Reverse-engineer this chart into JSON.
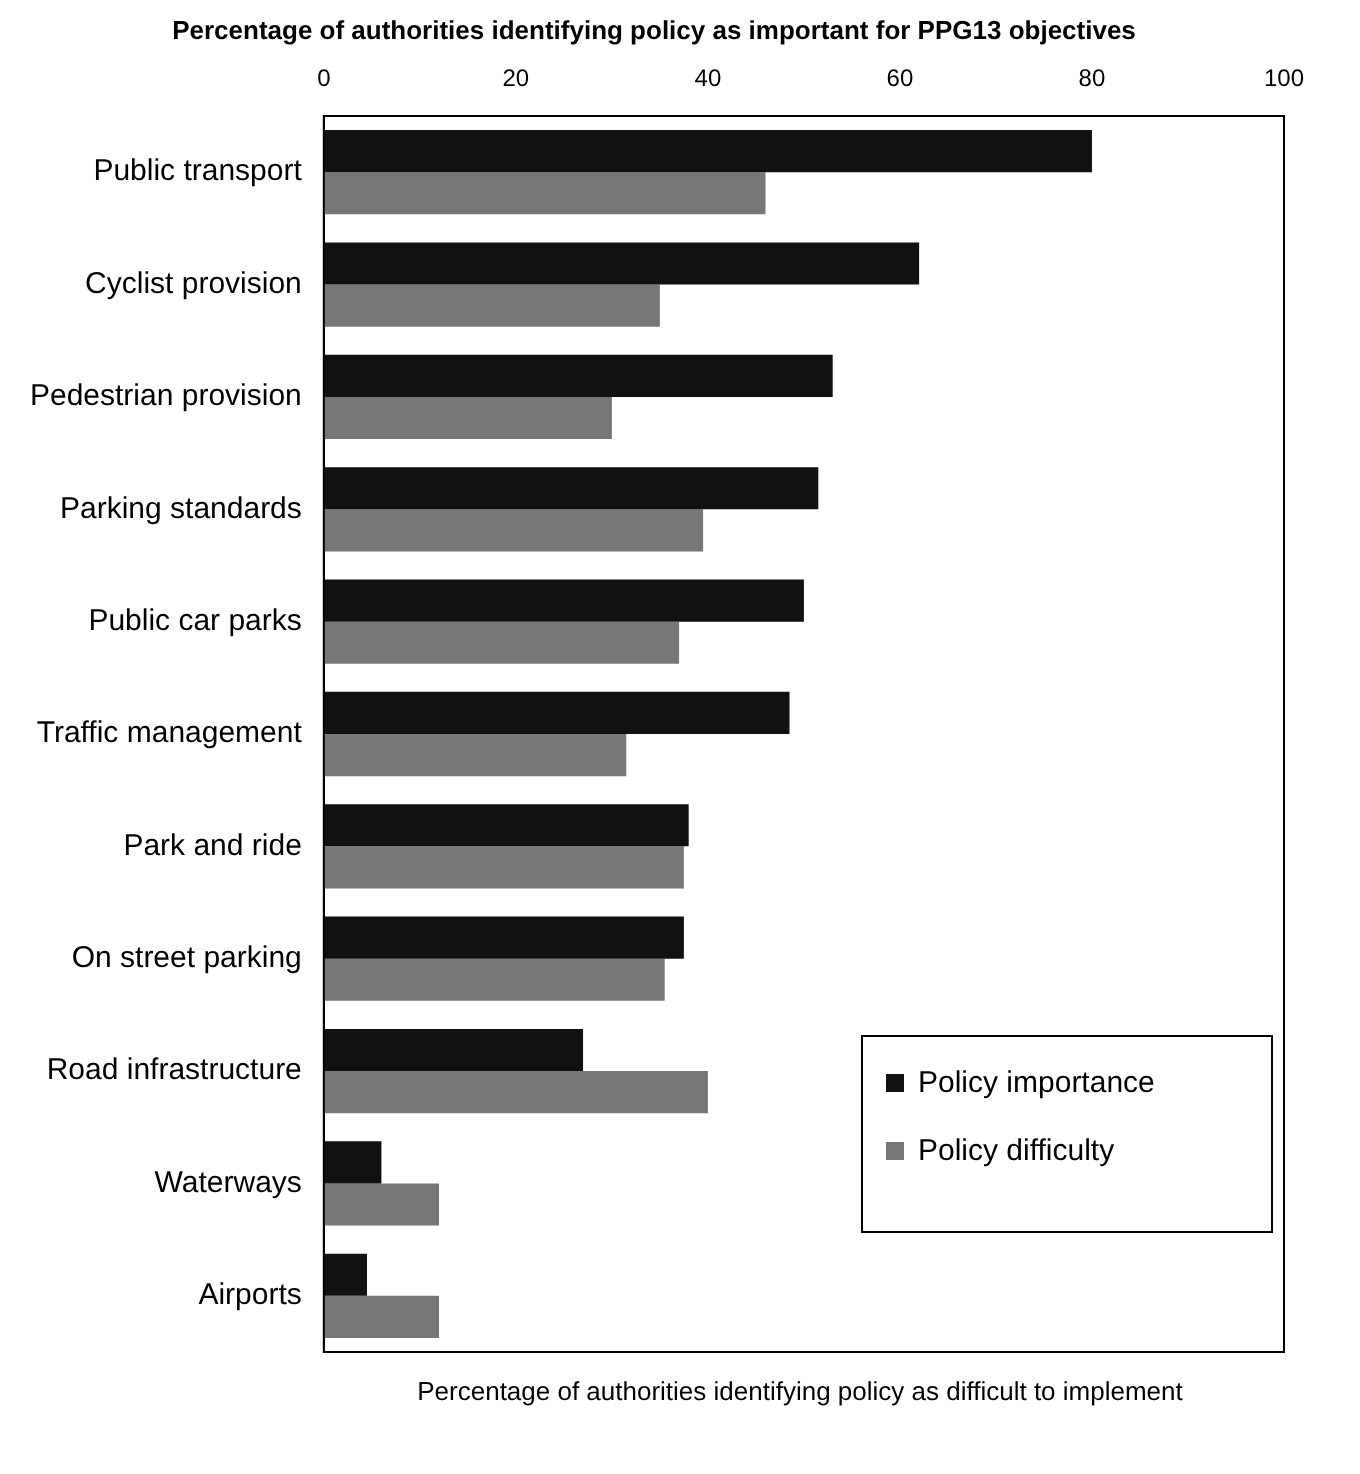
{
  "chart_data": {
    "type": "bar",
    "orientation": "horizontal",
    "title": "Percentage of authorities identifying policy as important for PPG13 objectives",
    "xlabel": "Percentage of authorities identifying policy as difficult to implement",
    "categories": [
      "Public transport",
      "Cyclist provision",
      "Pedestrian provision",
      "Parking standards",
      "Public car parks",
      "Traffic management",
      "Park and ride",
      "On street parking",
      "Road infrastructure",
      "Waterways",
      "Airports"
    ],
    "series": [
      {
        "name": "Policy importance",
        "color": "#111111",
        "values": [
          80,
          62,
          53,
          51.5,
          50,
          48.5,
          38,
          37.5,
          27,
          6,
          4.5
        ]
      },
      {
        "name": "Policy difficulty",
        "color": "#777777",
        "values": [
          46,
          35,
          30,
          39.5,
          37,
          31.5,
          37.5,
          35.5,
          40,
          12,
          12
        ]
      }
    ],
    "xlim": [
      0,
      100
    ],
    "xticks": [
      0,
      20,
      40,
      60,
      80,
      100
    ],
    "grid": false,
    "legend": "bottom right"
  }
}
